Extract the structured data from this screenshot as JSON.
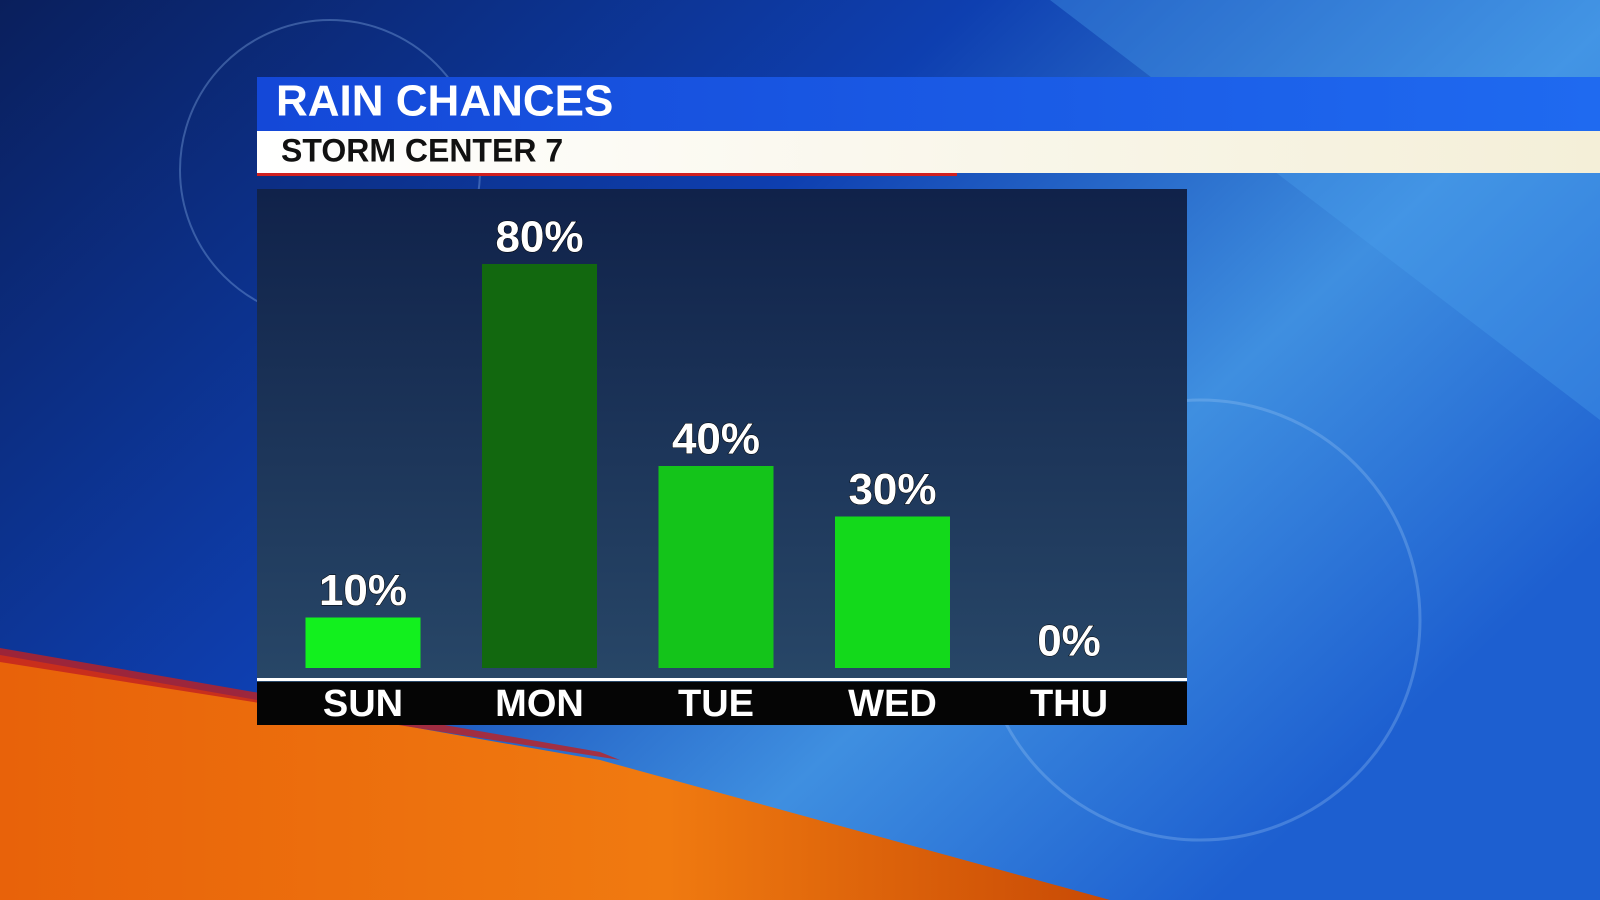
{
  "chart_data": {
    "type": "bar",
    "title": "RAIN CHANCES",
    "subtitle": "STORM CENTER 7",
    "categories": [
      "SUN",
      "MON",
      "TUE",
      "WED",
      "THU"
    ],
    "values": [
      10,
      80,
      40,
      30,
      0
    ],
    "value_labels": [
      "10%",
      "80%",
      "40%",
      "30%",
      "0%"
    ],
    "colors": [
      "#12f01e",
      "#12680f",
      "#14c41a",
      "#13d91b",
      "#13d91b"
    ]
  }
}
